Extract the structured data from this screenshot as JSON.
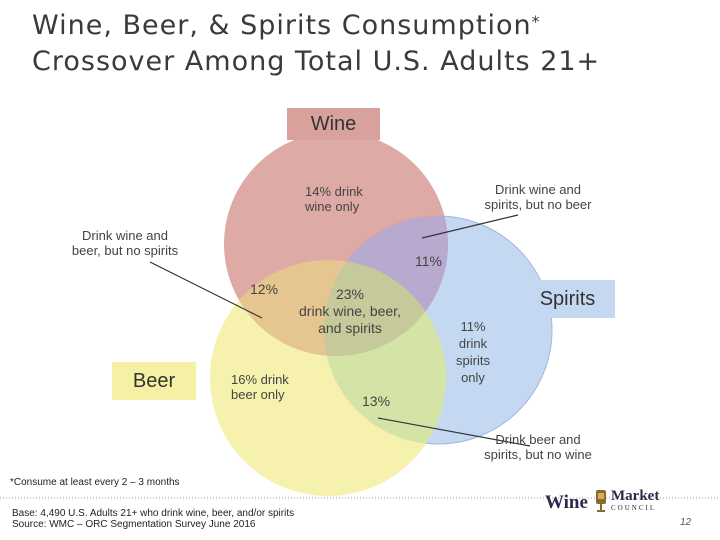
{
  "title": {
    "line1": "Wine, Beer, & Spirits Consumption",
    "asterisk": "*",
    "line2": "Crossover Among Total U.S. Adults 21+"
  },
  "sets": {
    "wine": "Wine",
    "beer": "Beer",
    "spirits": "Spirits"
  },
  "colors": {
    "wine": "#d9a19c",
    "beer": "#f5f0a3",
    "spirits": "#c5d8f2",
    "center": "#c6d0a0"
  },
  "regions": {
    "wine_only": "14% drink\nwine only",
    "wine_beer_pct": "12%",
    "wine_spirits_pct": "11%",
    "all_three": "23%\ndrink wine, beer,\nand spirits",
    "beer_only": "16% drink\nbeer only",
    "beer_spirits_pct": "13%",
    "spirits_only": "11%\ndrink\nspirits\nonly"
  },
  "callouts": {
    "wine_spirits": "Drink wine and\nspirits, but no beer",
    "wine_beer": "Drink wine and\nbeer, but no spirits",
    "beer_spirits": "Drink beer and\nspirits, but no wine"
  },
  "footnote": "*Consume at least every 2 – 3 months",
  "base_line1": "Base: 4,490 U.S. Adults 21+ who drink wine, beer, and/or spirits",
  "base_line2": "Source: WMC – ORC Segmentation Survey June 2016",
  "logo": {
    "wine": "Wine",
    "market": "Market",
    "council": "COUNCIL"
  },
  "page_number": "12"
}
